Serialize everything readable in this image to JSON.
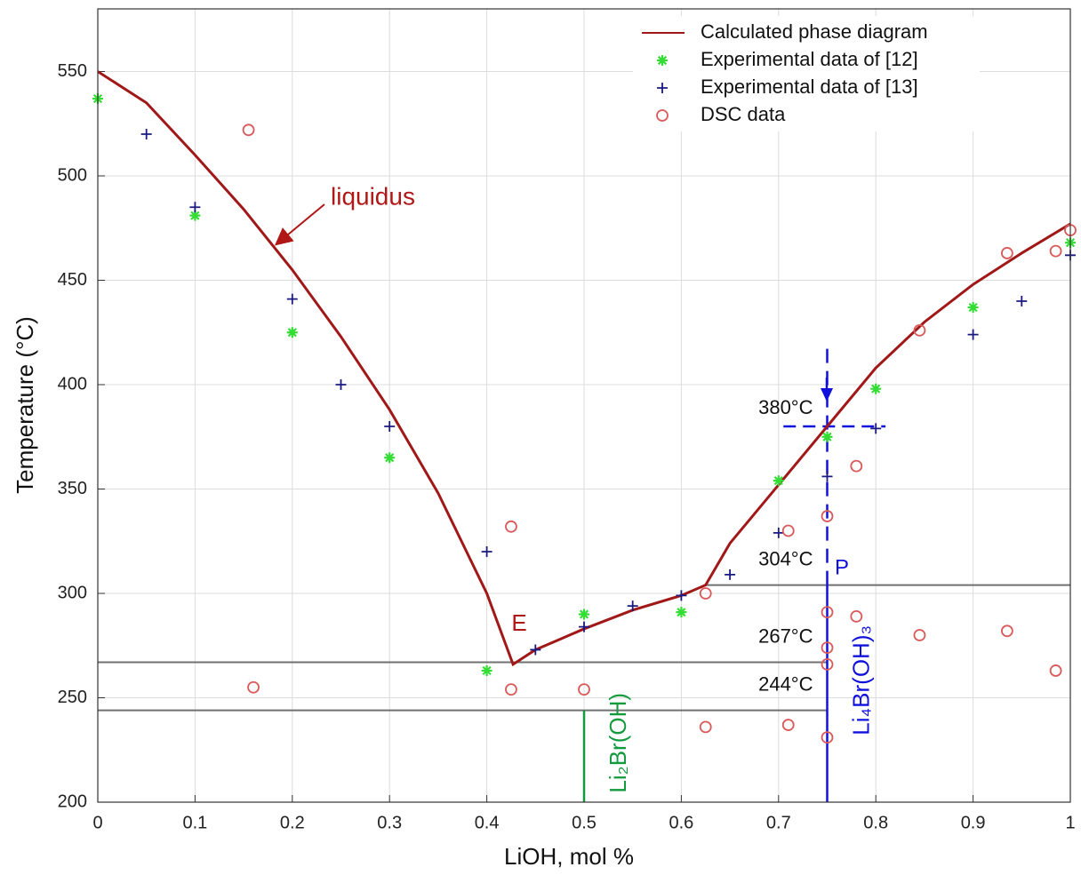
{
  "chart_data": {
    "type": "line",
    "x_label": "LiOH, mol %",
    "y_label": "Temperature (°C)",
    "xlim": [
      0,
      1
    ],
    "ylim": [
      200,
      580
    ],
    "xticks": [
      0,
      0.1,
      0.2,
      0.3,
      0.4,
      0.5,
      0.6,
      0.7,
      0.8,
      0.9,
      1
    ],
    "yticks": [
      200,
      250,
      300,
      350,
      400,
      450,
      500,
      550
    ],
    "grid": true,
    "legend": "upper right",
    "series": [
      {
        "name": "Calculated phase diagram",
        "marker": "line",
        "color": "#a01818",
        "x": [
          0,
          0.05,
          0.1,
          0.15,
          0.2,
          0.25,
          0.3,
          0.35,
          0.4,
          0.427,
          0.45,
          0.5,
          0.55,
          0.6,
          0.625,
          0.65,
          0.7,
          0.75,
          0.8,
          0.85,
          0.9,
          0.95,
          1
        ],
        "values": [
          550,
          535,
          510,
          484,
          455,
          423,
          388,
          348,
          300,
          266,
          273,
          283,
          292,
          299,
          304,
          324,
          352,
          380,
          408,
          430,
          448,
          463,
          477
        ]
      },
      {
        "name": "Experimental data of [12]",
        "marker": "asterisk",
        "color": "#33dd33",
        "x": [
          0,
          0.1,
          0.2,
          0.3,
          0.4,
          0.5,
          0.6,
          0.7,
          0.75,
          0.8,
          0.9,
          1
        ],
        "values": [
          537,
          481,
          425,
          365,
          263,
          290,
          291,
          354,
          375,
          398,
          437,
          468
        ]
      },
      {
        "name": "Experimental data of [13]",
        "marker": "plus",
        "color": "#1a1a80",
        "x": [
          0.05,
          0.1,
          0.2,
          0.25,
          0.3,
          0.4,
          0.45,
          0.5,
          0.55,
          0.6,
          0.65,
          0.7,
          0.75,
          0.8,
          0.9,
          0.95,
          1
        ],
        "values": [
          520,
          485,
          441,
          400,
          380,
          320,
          273,
          284,
          294,
          299,
          309,
          329,
          356,
          379,
          424,
          440,
          462
        ]
      },
      {
        "name": "DSC data",
        "marker": "circle",
        "color": "#d85a5a",
        "x": [
          0.155,
          0.16,
          0.425,
          0.425,
          0.5,
          0.625,
          0.625,
          0.71,
          0.71,
          0.75,
          0.75,
          0.75,
          0.75,
          0.75,
          0.78,
          0.78,
          0.845,
          0.845,
          0.935,
          0.935,
          0.985,
          0.985,
          1
        ],
        "values": [
          522,
          255,
          332,
          254,
          254,
          300,
          236,
          330,
          237,
          337,
          291,
          274,
          266,
          231,
          361,
          289,
          426,
          280,
          463,
          282,
          464,
          263,
          474
        ]
      }
    ],
    "reference_lines": [
      {
        "y": {
          "value": 304,
          "label": "304°C"
        },
        "x": [
          0.625,
          1
        ],
        "color": "#707070"
      },
      {
        "y": {
          "value": 267,
          "label": "267°C"
        },
        "x": [
          0,
          0.75
        ],
        "color": "#707070"
      },
      {
        "y": {
          "value": 244,
          "label": "244°C"
        },
        "x": [
          0,
          0.75
        ],
        "color": "#707070"
      },
      {
        "y": {
          "value": 380,
          "label": "380°C"
        },
        "x": [
          0.705,
          0.81
        ],
        "color": "#1010dd",
        "dashed": true
      }
    ],
    "vertical_lines": [
      {
        "x": 0.5,
        "y": [
          200,
          244
        ],
        "color": "#129a3c",
        "label": "Li₂Br(OH)"
      },
      {
        "x": 0.75,
        "y": [
          200,
          304
        ],
        "color": "#1010dd",
        "label": "Li₄Br(OH)₃"
      },
      {
        "x": 0.75,
        "y": [
          304,
          420
        ],
        "color": "#1010dd",
        "dashed": true
      }
    ],
    "annotations": [
      "liquidus",
      "E",
      "P"
    ]
  }
}
